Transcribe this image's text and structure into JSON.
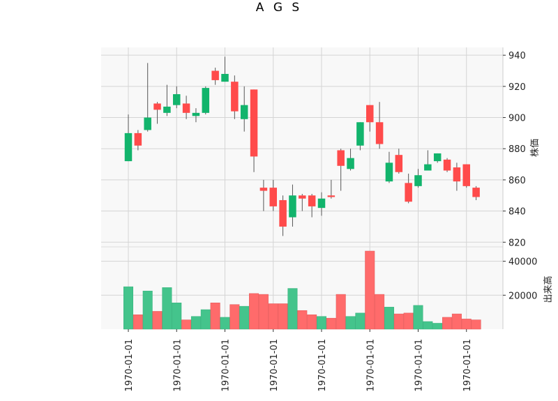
{
  "chart_data": {
    "type": "candlestick",
    "title": "A G S",
    "price_axis": {
      "label": "株価",
      "ticks": [
        820,
        840,
        860,
        880,
        900,
        920,
        940
      ],
      "ylim": [
        817,
        945
      ]
    },
    "volume_axis": {
      "label": "出来高",
      "ticks": [
        20000,
        40000
      ],
      "tick_labels": [
        "20000",
        "40000"
      ],
      "ylim": [
        0,
        46000
      ]
    },
    "x_tick_labels": [
      "1970-01-01",
      "1970-01-01",
      "1970-01-01",
      "1970-01-01",
      "1970-01-01",
      "1970-01-01",
      "1970-01-01",
      "1970-01-01"
    ],
    "x_tick_index": [
      0,
      5,
      10,
      15,
      20,
      25,
      30,
      35
    ],
    "grid": true,
    "up_color": "#ff4b4b",
    "down_color": "#12b46c",
    "up_volume_color": "#ff6b6b",
    "down_volume_color": "#44c48c",
    "candles": [
      {
        "open": 890,
        "high": 902,
        "low": 872,
        "close": 872,
        "volume": 25000
      },
      {
        "open": 882,
        "high": 892,
        "low": 879,
        "close": 890,
        "volume": 8500
      },
      {
        "open": 900,
        "high": 935,
        "low": 891,
        "close": 892,
        "volume": 22500
      },
      {
        "open": 905,
        "high": 910,
        "low": 896,
        "close": 909,
        "volume": 10500
      },
      {
        "open": 907,
        "high": 921,
        "low": 901,
        "close": 903,
        "volume": 24500
      },
      {
        "open": 915,
        "high": 920,
        "low": 906,
        "close": 908,
        "volume": 15500
      },
      {
        "open": 903,
        "high": 914,
        "low": 899,
        "close": 909,
        "volume": 5500
      },
      {
        "open": 903,
        "high": 906,
        "low": 897,
        "close": 901,
        "volume": 7500
      },
      {
        "open": 919,
        "high": 920,
        "low": 902,
        "close": 903,
        "volume": 11500
      },
      {
        "open": 924,
        "high": 932,
        "low": 921,
        "close": 930,
        "volume": 15500
      },
      {
        "open": 928,
        "high": 939,
        "low": 923,
        "close": 923,
        "volume": 7000
      },
      {
        "open": 904,
        "high": 927,
        "low": 899,
        "close": 923,
        "volume": 14500
      },
      {
        "open": 908,
        "high": 920,
        "low": 891,
        "close": 899,
        "volume": 13500
      },
      {
        "open": 875,
        "high": 918,
        "low": 865,
        "close": 918,
        "volume": 21000
      },
      {
        "open": 853,
        "high": 860,
        "low": 840,
        "close": 855,
        "volume": 20500
      },
      {
        "open": 843,
        "high": 860,
        "low": 840,
        "close": 855,
        "volume": 15000
      },
      {
        "open": 830,
        "high": 850,
        "low": 824,
        "close": 847,
        "volume": 15000
      },
      {
        "open": 850,
        "high": 857,
        "low": 830,
        "close": 836,
        "volume": 24000
      },
      {
        "open": 848,
        "high": 851,
        "low": 840,
        "close": 850,
        "volume": 11000
      },
      {
        "open": 843,
        "high": 851,
        "low": 836,
        "close": 850,
        "volume": 8500
      },
      {
        "open": 848,
        "high": 852,
        "low": 837,
        "close": 842,
        "volume": 7500
      },
      {
        "open": 849,
        "high": 860,
        "low": 848,
        "close": 850,
        "volume": 6500
      },
      {
        "open": 869,
        "high": 880,
        "low": 853,
        "close": 879,
        "volume": 20500
      },
      {
        "open": 874,
        "high": 880,
        "low": 866,
        "close": 867,
        "volume": 7500
      },
      {
        "open": 897,
        "high": 897,
        "low": 879,
        "close": 882,
        "volume": 9500
      },
      {
        "open": 897,
        "high": 908,
        "low": 891,
        "close": 908,
        "volume": 46000
      },
      {
        "open": 883,
        "high": 910,
        "low": 880,
        "close": 897,
        "volume": 20500
      },
      {
        "open": 871,
        "high": 878,
        "low": 858,
        "close": 859,
        "volume": 13000
      },
      {
        "open": 865,
        "high": 880,
        "low": 864,
        "close": 876,
        "volume": 9000
      },
      {
        "open": 846,
        "high": 864,
        "low": 845,
        "close": 858,
        "volume": 9500
      },
      {
        "open": 863,
        "high": 867,
        "low": 855,
        "close": 856,
        "volume": 14000
      },
      {
        "open": 870,
        "high": 879,
        "low": 866,
        "close": 866,
        "volume": 4500
      },
      {
        "open": 877,
        "high": 877,
        "low": 871,
        "close": 872,
        "volume": 3500
      },
      {
        "open": 866,
        "high": 874,
        "low": 865,
        "close": 873,
        "volume": 7000
      },
      {
        "open": 859,
        "high": 871,
        "low": 853,
        "close": 868,
        "volume": 9000
      },
      {
        "open": 856,
        "high": 870,
        "low": 855,
        "close": 870,
        "volume": 6000
      },
      {
        "open": 849,
        "high": 856,
        "low": 847,
        "close": 855,
        "volume": 5500
      }
    ]
  }
}
